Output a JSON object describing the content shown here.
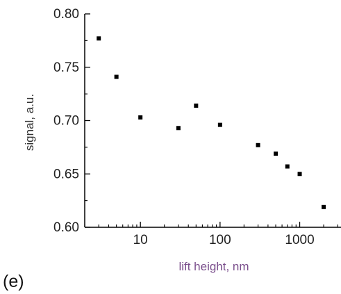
{
  "panel_label": "(e)",
  "chart_data": {
    "type": "scatter",
    "title": "",
    "xlabel": "lift height, nm",
    "ylabel": "signal, a.u.",
    "xscale": "log",
    "xlim": [
      2.0,
      3300
    ],
    "ylim": [
      0.6,
      0.8
    ],
    "x_ticks": [
      10,
      100,
      1000
    ],
    "x_tick_labels": [
      "10",
      "100",
      "1000"
    ],
    "y_ticks": [
      0.6,
      0.65,
      0.7,
      0.75,
      0.8
    ],
    "y_tick_labels": [
      "0.60",
      "0.65",
      "0.70",
      "0.75",
      "0.80"
    ],
    "grid": false,
    "legend": "none",
    "marker_color": "#000000",
    "points": [
      {
        "x": 3,
        "y": 0.777
      },
      {
        "x": 5,
        "y": 0.741
      },
      {
        "x": 10,
        "y": 0.703
      },
      {
        "x": 30,
        "y": 0.693
      },
      {
        "x": 50,
        "y": 0.714
      },
      {
        "x": 100,
        "y": 0.696
      },
      {
        "x": 300,
        "y": 0.677
      },
      {
        "x": 500,
        "y": 0.669
      },
      {
        "x": 700,
        "y": 0.657
      },
      {
        "x": 1000,
        "y": 0.65
      },
      {
        "x": 2000,
        "y": 0.619
      }
    ]
  }
}
